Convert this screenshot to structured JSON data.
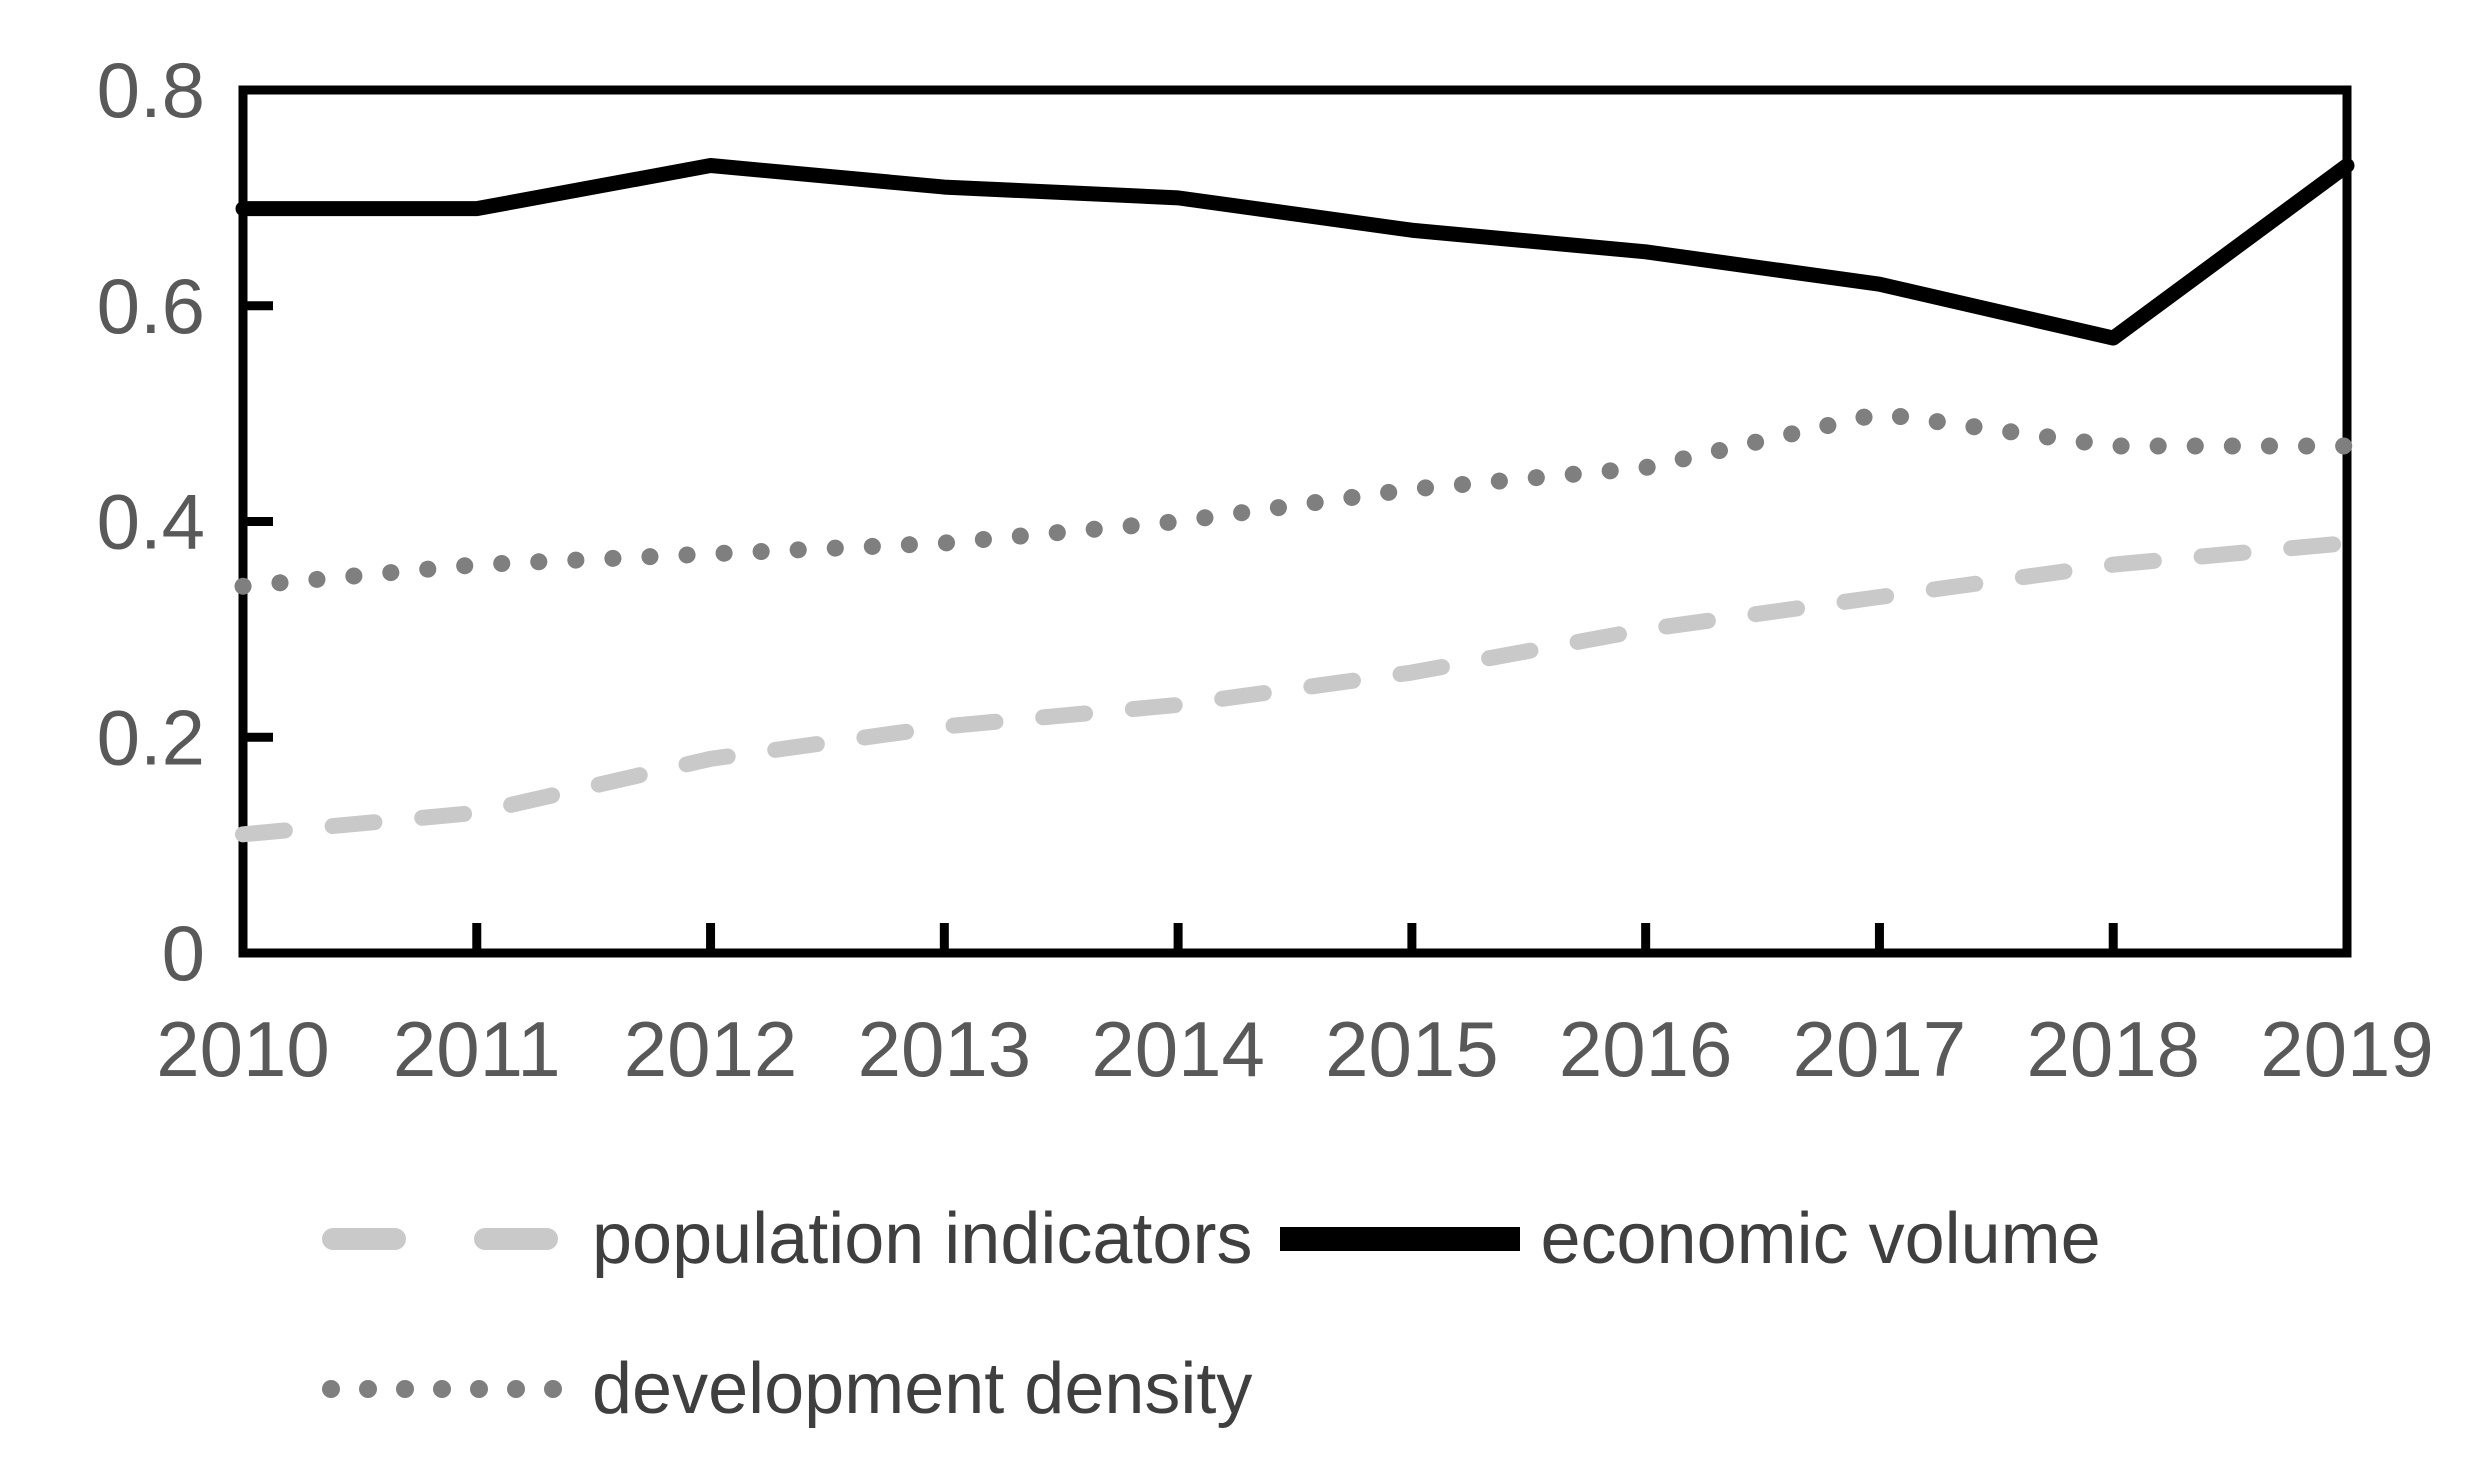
{
  "chart_data": {
    "type": "line",
    "title": "",
    "x": [
      "2010",
      "2011",
      "2012",
      "2013",
      "2014",
      "2015",
      "2016",
      "2017",
      "2018",
      "2019"
    ],
    "y_axis": {
      "min": 0,
      "max": 0.8,
      "tick_values": [
        0,
        0.2,
        0.4,
        0.6,
        0.8
      ],
      "ticks": [
        "0",
        "0.2",
        "0.4",
        "0.6",
        "0.8"
      ]
    },
    "grid": false,
    "legend_position": "bottom",
    "axis_color": "#000000",
    "tick_label_color": "#595959",
    "legend_text_color": "#3f3f3f",
    "series": [
      {
        "name": "population indicators",
        "pattern": "dashed",
        "color": "#c9c9c9",
        "values": [
          0.11,
          0.13,
          0.18,
          0.21,
          0.23,
          0.26,
          0.3,
          0.33,
          0.36,
          0.38
        ]
      },
      {
        "name": "economic volume",
        "pattern": "solid",
        "color": "#000000",
        "values": [
          0.69,
          0.69,
          0.73,
          0.71,
          0.7,
          0.67,
          0.65,
          0.62,
          0.57,
          0.73
        ]
      },
      {
        "name": "development density",
        "pattern": "dotted",
        "color": "#7f7f7f",
        "values": [
          0.34,
          0.36,
          0.37,
          0.38,
          0.4,
          0.43,
          0.45,
          0.5,
          0.47,
          0.47
        ]
      }
    ]
  }
}
